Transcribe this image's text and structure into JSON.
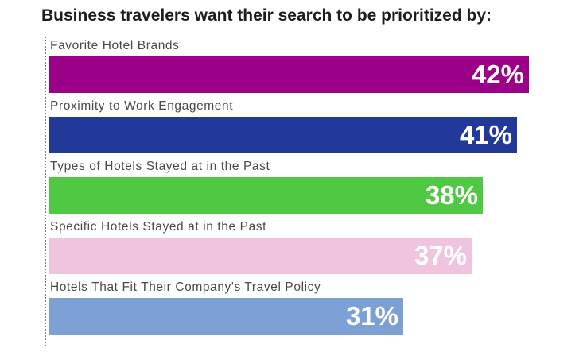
{
  "chart_data": {
    "type": "bar",
    "orientation": "horizontal",
    "title": "Business travelers want their search to be prioritized by:",
    "categories": [
      "Favorite Hotel Brands",
      "Proximity to Work Engagement",
      "Types of Hotels Stayed at in the Past",
      "Specific Hotels Stayed at in the Past",
      "Hotels That Fit Their Company's Travel Policy"
    ],
    "values": [
      42,
      41,
      38,
      37,
      31
    ],
    "value_labels": [
      "42%",
      "41%",
      "38%",
      "37%",
      "31%"
    ],
    "colors": [
      "#9b0088",
      "#23399a",
      "#4fc843",
      "#eec4de",
      "#7da0d4"
    ],
    "xlim": [
      0,
      46
    ],
    "grid": false,
    "legend": "none"
  }
}
